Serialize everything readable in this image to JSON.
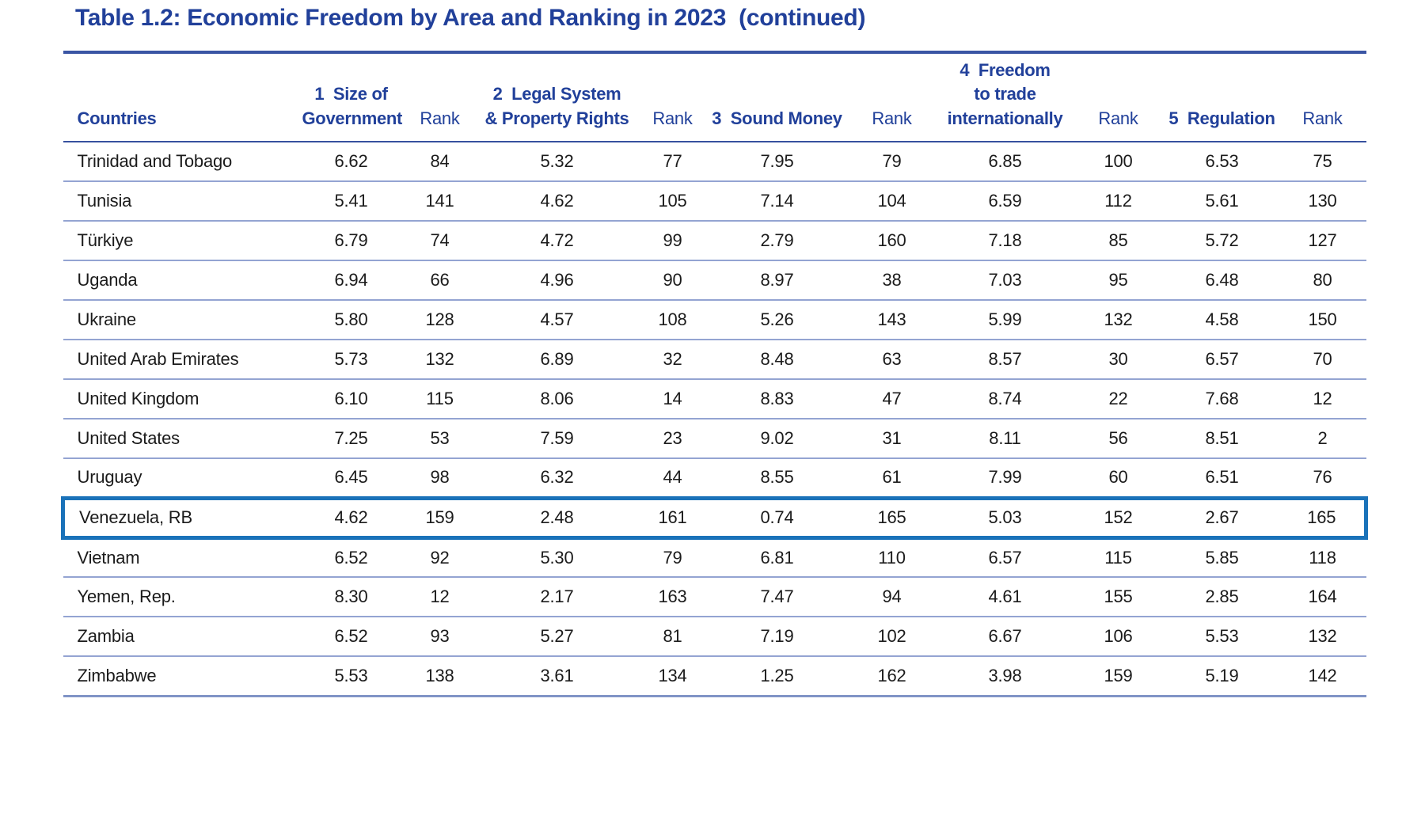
{
  "title": "Table 1.2: Economic Freedom by Area and Ranking in 2023  (continued)",
  "colors": {
    "heading_navy": "#21409a",
    "top_rule": "#3a55a4",
    "row_separator": "#94a4d2",
    "highlight_box": "#1a72b9",
    "body_text": "#1b1b1b"
  },
  "table": {
    "columns": [
      {
        "label": "Countries"
      },
      {
        "label": "1  Size of\nGovernment"
      },
      {
        "label": "Rank"
      },
      {
        "label": "2  Legal System\n& Property Rights"
      },
      {
        "label": "Rank"
      },
      {
        "label": "3  Sound Money"
      },
      {
        "label": "Rank"
      },
      {
        "label": "4  Freedom\nto trade\ninternationally"
      },
      {
        "label": "Rank"
      },
      {
        "label": "5  Regulation"
      },
      {
        "label": "Rank"
      }
    ],
    "rows": [
      {
        "country": "Trinidad and Tobago",
        "highlighted": false,
        "values": [
          "6.62",
          "84",
          "5.32",
          "77",
          "7.95",
          "79",
          "6.85",
          "100",
          "6.53",
          "75"
        ]
      },
      {
        "country": "Tunisia",
        "highlighted": false,
        "values": [
          "5.41",
          "141",
          "4.62",
          "105",
          "7.14",
          "104",
          "6.59",
          "112",
          "5.61",
          "130"
        ]
      },
      {
        "country": "Türkiye",
        "highlighted": false,
        "values": [
          "6.79",
          "74",
          "4.72",
          "99",
          "2.79",
          "160",
          "7.18",
          "85",
          "5.72",
          "127"
        ]
      },
      {
        "country": "Uganda",
        "highlighted": false,
        "values": [
          "6.94",
          "66",
          "4.96",
          "90",
          "8.97",
          "38",
          "7.03",
          "95",
          "6.48",
          "80"
        ]
      },
      {
        "country": "Ukraine",
        "highlighted": false,
        "values": [
          "5.80",
          "128",
          "4.57",
          "108",
          "5.26",
          "143",
          "5.99",
          "132",
          "4.58",
          "150"
        ]
      },
      {
        "country": "United Arab Emirates",
        "highlighted": false,
        "values": [
          "5.73",
          "132",
          "6.89",
          "32",
          "8.48",
          "63",
          "8.57",
          "30",
          "6.57",
          "70"
        ]
      },
      {
        "country": "United Kingdom",
        "highlighted": false,
        "values": [
          "6.10",
          "115",
          "8.06",
          "14",
          "8.83",
          "47",
          "8.74",
          "22",
          "7.68",
          "12"
        ]
      },
      {
        "country": "United States",
        "highlighted": false,
        "values": [
          "7.25",
          "53",
          "7.59",
          "23",
          "9.02",
          "31",
          "8.11",
          "56",
          "8.51",
          "2"
        ]
      },
      {
        "country": "Uruguay",
        "highlighted": false,
        "values": [
          "6.45",
          "98",
          "6.32",
          "44",
          "8.55",
          "61",
          "7.99",
          "60",
          "6.51",
          "76"
        ]
      },
      {
        "country": "Venezuela, RB",
        "highlighted": true,
        "values": [
          "4.62",
          "159",
          "2.48",
          "161",
          "0.74",
          "165",
          "5.03",
          "152",
          "2.67",
          "165"
        ]
      },
      {
        "country": "Vietnam",
        "highlighted": false,
        "values": [
          "6.52",
          "92",
          "5.30",
          "79",
          "6.81",
          "110",
          "6.57",
          "115",
          "5.85",
          "118"
        ]
      },
      {
        "country": "Yemen, Rep.",
        "highlighted": false,
        "values": [
          "8.30",
          "12",
          "2.17",
          "163",
          "7.47",
          "94",
          "4.61",
          "155",
          "2.85",
          "164"
        ]
      },
      {
        "country": "Zambia",
        "highlighted": false,
        "values": [
          "6.52",
          "93",
          "5.27",
          "81",
          "7.19",
          "102",
          "6.67",
          "106",
          "5.53",
          "132"
        ]
      },
      {
        "country": "Zimbabwe",
        "highlighted": false,
        "values": [
          "5.53",
          "138",
          "3.61",
          "134",
          "1.25",
          "162",
          "3.98",
          "159",
          "5.19",
          "142"
        ]
      }
    ]
  }
}
